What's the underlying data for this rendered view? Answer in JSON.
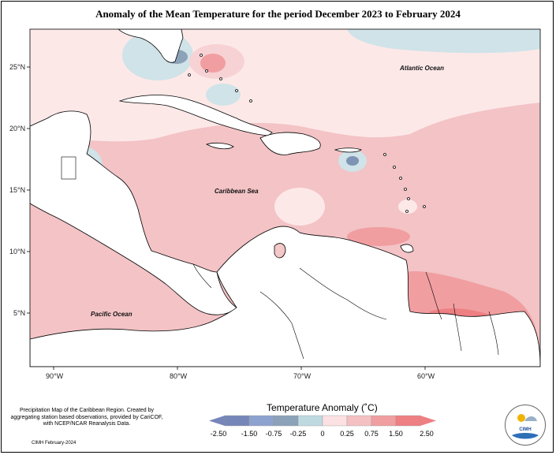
{
  "title": "Anomaly of the Mean Temperature for the period December 2023 to February 2024",
  "axes": {
    "y_labels": [
      "25°N",
      "20°N",
      "15°N",
      "10°N",
      "5°N"
    ],
    "x_labels": [
      "90°W",
      "80°W",
      "70°W",
      "60°W"
    ]
  },
  "regions": {
    "atlantic": "Atlantic Ocean",
    "caribbean": "Caribbean Sea",
    "pacific": "Pacific Ocean"
  },
  "legend": {
    "title": "Temperature Anomaly (˚C)",
    "labels": [
      "-2.50",
      "-1.50",
      "-0.75",
      "-0.25",
      "0",
      "0.25",
      "0.75",
      "1.50",
      "2.50"
    ],
    "colors": [
      "#7786b9",
      "#8ea2cf",
      "#8ba2b8",
      "#bfd9e0",
      "#ffffff",
      "#fbe1e2",
      "#f4c0c2",
      "#f19ea1",
      "#ee7f82"
    ]
  },
  "credits": "Precipitation Map of the Caribbean Region. Created by aggregating station based observations, provided by CariCOF, with NCEP/NCAR Reanalysis Data.",
  "footer": "CIMH February-2024",
  "logo_text": "CIMH",
  "colors": {
    "sea_warm": "#f4c7c9",
    "sea_light": "#fde8e8",
    "sea_cool": "#cfe3e8",
    "land": "#ffffff"
  }
}
